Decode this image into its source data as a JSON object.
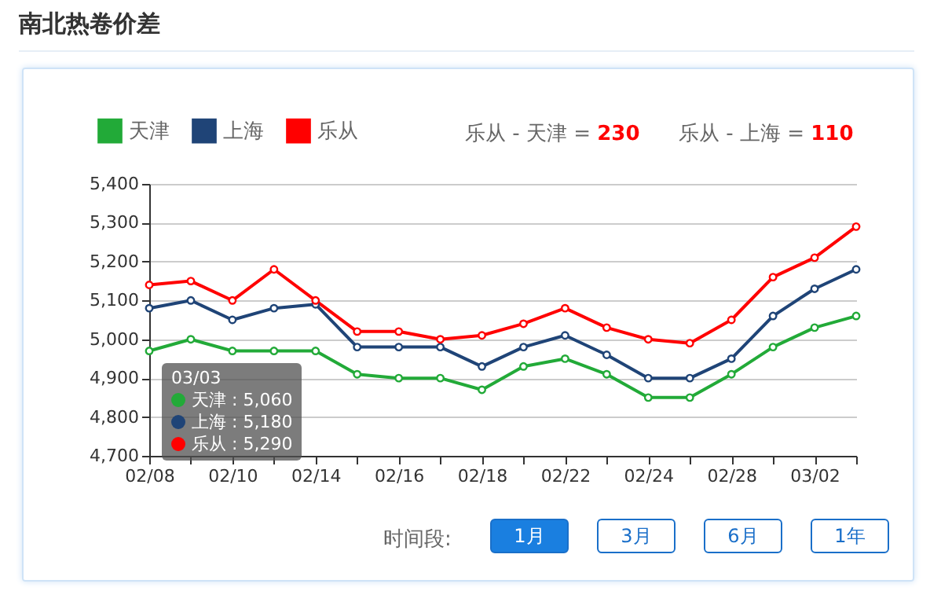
{
  "chart_data": {
    "type": "line",
    "title": "南北热卷价差",
    "categories": [
      "02/08",
      null,
      "02/10",
      null,
      "02/14",
      null,
      "02/16",
      null,
      "02/18",
      null,
      "02/22",
      null,
      "02/24",
      null,
      "02/28",
      null,
      "03/02",
      null
    ],
    "series": [
      {
        "name": "天津",
        "color": "#22aa38",
        "values": [
          4970,
          5000,
          4970,
          4970,
          4970,
          4910,
          4900,
          4900,
          4870,
          4930,
          4950,
          4910,
          4850,
          4850,
          4910,
          4980,
          5030,
          5060
        ]
      },
      {
        "name": "上海",
        "color": "#1f4477",
        "values": [
          5080,
          5100,
          5050,
          5080,
          5090,
          4980,
          4980,
          4980,
          4930,
          4980,
          5010,
          4960,
          4900,
          4900,
          4950,
          5060,
          5130,
          5180
        ]
      },
      {
        "name": "乐从",
        "color": "#ff0000",
        "values": [
          5140,
          5150,
          5100,
          5180,
          5100,
          5020,
          5020,
          5000,
          5010,
          5040,
          5080,
          5030,
          5000,
          4990,
          5050,
          5160,
          5210,
          5290
        ]
      }
    ],
    "ylim": [
      4700,
      5400
    ],
    "yticks": [
      {
        "value": 4700,
        "label": "4,700"
      },
      {
        "value": 4800,
        "label": "4,800"
      },
      {
        "value": 4900,
        "label": "4,900"
      },
      {
        "value": 5000,
        "label": "5,000"
      },
      {
        "value": 5100,
        "label": "5,100"
      },
      {
        "value": 5200,
        "label": "5,200"
      },
      {
        "value": 5300,
        "label": "5,300"
      },
      {
        "value": 5400,
        "label": "5,400"
      }
    ],
    "grid": "y",
    "legend": "top left",
    "marker": "circle",
    "annotations": [
      "乐从 - 天津 = 230",
      "乐从 - 上海 = 110",
      "03/03",
      "天津 : 5,060",
      "上海 : 5,180",
      "乐从 : 5,290",
      "时间段:",
      "1月",
      "3月",
      "6月",
      "1年"
    ]
  }
}
